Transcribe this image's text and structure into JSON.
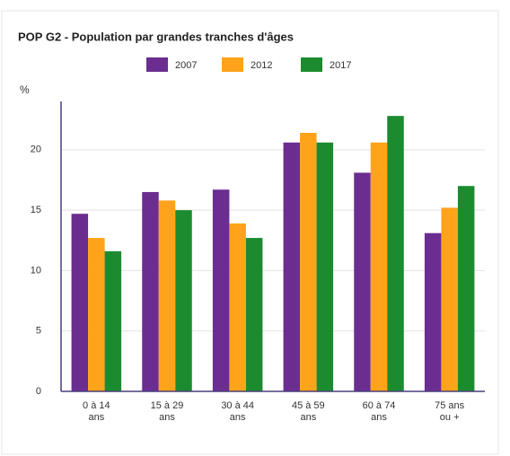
{
  "chart_data": {
    "type": "bar",
    "title": "POP G2 - Population par grandes tranches d'âges",
    "y_label": "%",
    "categories": [
      [
        "0 à 14",
        "ans"
      ],
      [
        "15 à 29",
        "ans"
      ],
      [
        "30 à 44",
        "ans"
      ],
      [
        "45 à 59",
        "ans"
      ],
      [
        "60 à 74",
        "ans"
      ],
      [
        "75 ans",
        "ou +"
      ]
    ],
    "series": [
      {
        "name": "2007",
        "color": "#6b2d90",
        "values": [
          14.7,
          16.5,
          16.7,
          20.6,
          18.1,
          13.1
        ]
      },
      {
        "name": "2012",
        "color": "#ffa31a",
        "values": [
          12.7,
          15.8,
          13.9,
          21.4,
          20.6,
          15.2
        ]
      },
      {
        "name": "2017",
        "color": "#1c8b2f",
        "values": [
          11.6,
          15.0,
          12.7,
          20.6,
          22.8,
          17.0
        ]
      }
    ],
    "ylim": [
      0,
      24
    ],
    "yticks": [
      0,
      5,
      10,
      15,
      20
    ],
    "grid": true,
    "legend": "top"
  }
}
